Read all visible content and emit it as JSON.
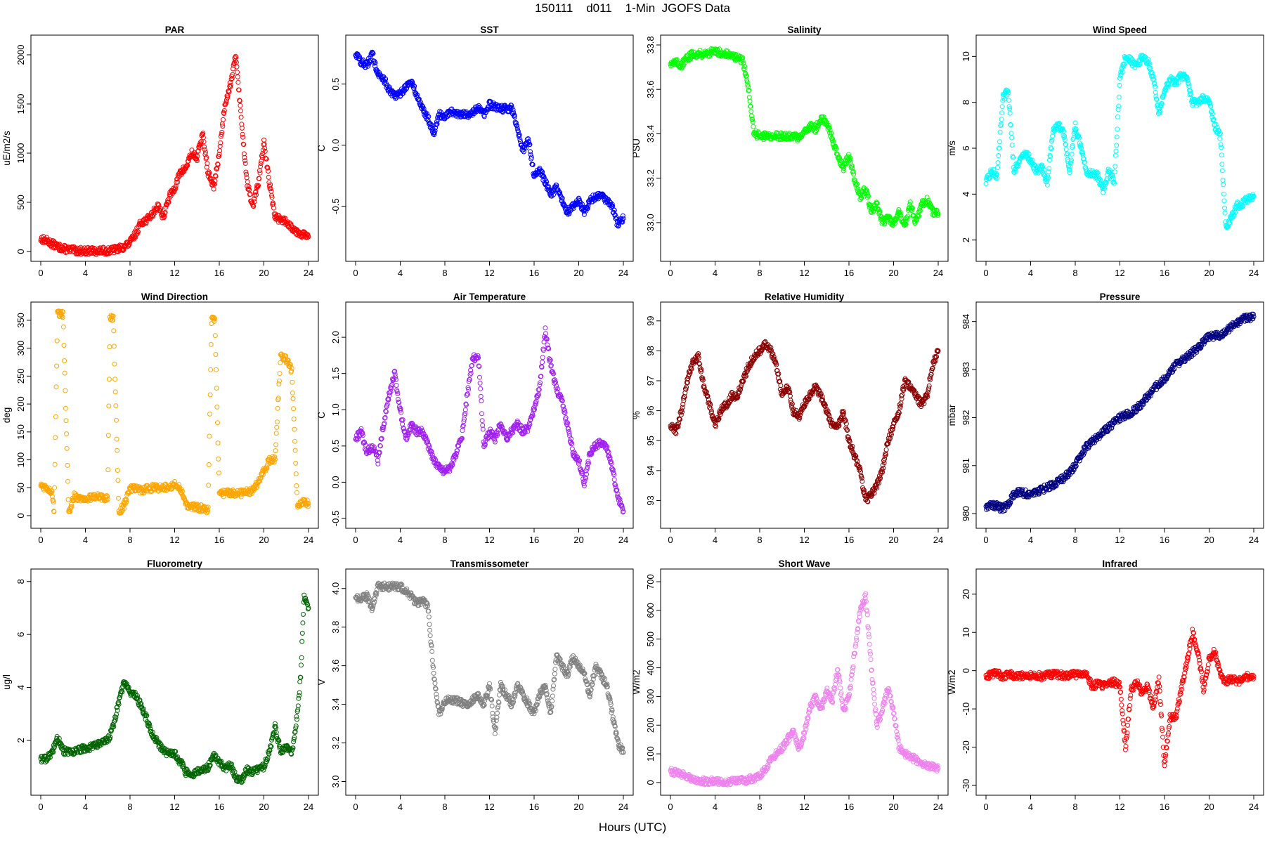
{
  "figure": {
    "title": "150111    d011    1-Min  JGOFS Data",
    "xlabel": "Hours (UTC)"
  },
  "chart_data": [
    {
      "type": "scatter",
      "title": "PAR",
      "ylabel": "uE/m2/s",
      "color": "#ff0000",
      "xlim": [
        0,
        24
      ],
      "ylim": [
        0,
        2100
      ],
      "xticks": [
        0,
        4,
        8,
        12,
        16,
        20,
        24
      ],
      "yticks": [
        0,
        500,
        1000,
        1500,
        2000
      ],
      "x": [
        0,
        0.5,
        1,
        1.5,
        2,
        3,
        4,
        5,
        6,
        6.5,
        7,
        7.5,
        8,
        8.5,
        9,
        9.5,
        10,
        10.5,
        11,
        11.5,
        12,
        12.5,
        13,
        13.5,
        14,
        14.5,
        15,
        15.5,
        16,
        16.5,
        17,
        17.5,
        18,
        18.5,
        19,
        19.5,
        20,
        20.5,
        21,
        22,
        23,
        24
      ],
      "y": [
        130,
        110,
        80,
        50,
        30,
        10,
        5,
        5,
        8,
        15,
        30,
        50,
        90,
        180,
        300,
        320,
        380,
        470,
        350,
        550,
        650,
        800,
        850,
        1000,
        950,
        1200,
        800,
        650,
        1000,
        1500,
        1700,
        2000,
        1300,
        700,
        450,
        700,
        1100,
        700,
        350,
        300,
        200,
        150
      ]
    },
    {
      "type": "scatter",
      "title": "SST",
      "ylabel": "C",
      "color": "#0000ff",
      "xlim": [
        0,
        24
      ],
      "ylim": [
        -0.87,
        0.82
      ],
      "xticks": [
        0,
        4,
        8,
        12,
        16,
        20,
        24
      ],
      "yticks": [
        -0.5,
        0.0,
        0.5
      ],
      "ytick_labels": [
        "-0.5",
        "0.0",
        "0.5"
      ],
      "x": [
        0,
        0.5,
        1,
        1.5,
        2,
        2.5,
        3,
        3.5,
        4,
        4.5,
        5,
        5.5,
        6,
        6.5,
        7,
        7.5,
        8,
        8.5,
        9,
        10,
        11,
        11.5,
        12,
        13,
        14,
        14.5,
        15,
        15.5,
        16,
        16.5,
        17,
        17.5,
        18,
        18.5,
        19,
        19.5,
        20,
        20.5,
        21,
        22,
        23,
        23.5,
        24
      ],
      "y": [
        0.75,
        0.68,
        0.65,
        0.75,
        0.58,
        0.55,
        0.45,
        0.4,
        0.42,
        0.48,
        0.52,
        0.4,
        0.3,
        0.22,
        0.1,
        0.25,
        0.24,
        0.28,
        0.25,
        0.25,
        0.3,
        0.25,
        0.33,
        0.3,
        0.3,
        0.15,
        -0.05,
        0.05,
        -0.25,
        -0.2,
        -0.3,
        -0.4,
        -0.35,
        -0.45,
        -0.55,
        -0.5,
        -0.45,
        -0.55,
        -0.45,
        -0.4,
        -0.5,
        -0.65,
        -0.6
      ]
    },
    {
      "type": "scatter",
      "title": "Salinity",
      "ylabel": "PSU",
      "color": "#00ff00",
      "xlim": [
        0,
        24
      ],
      "ylim": [
        32.87,
        33.8
      ],
      "xticks": [
        0,
        4,
        8,
        12,
        16,
        20,
        24
      ],
      "yticks": [
        33.0,
        33.2,
        33.4,
        33.6,
        33.8
      ],
      "ytick_labels": [
        "33.0",
        "33.2",
        "33.4",
        "33.6",
        "33.8"
      ],
      "x": [
        0,
        0.5,
        1,
        1.5,
        2,
        3,
        4,
        5,
        6,
        6.5,
        7,
        7.5,
        8,
        9,
        10,
        11,
        11.5,
        12,
        12.5,
        13,
        13.5,
        14,
        14.5,
        15,
        15.5,
        16,
        16.5,
        17,
        17.5,
        18,
        18.5,
        19,
        19.5,
        20,
        20.5,
        21,
        21.5,
        22,
        22.5,
        23,
        23.5,
        24
      ],
      "y": [
        33.72,
        33.72,
        33.71,
        33.74,
        33.76,
        33.76,
        33.77,
        33.76,
        33.74,
        33.73,
        33.6,
        33.4,
        33.39,
        33.39,
        33.39,
        33.39,
        33.38,
        33.4,
        33.44,
        33.42,
        33.47,
        33.45,
        33.38,
        33.3,
        33.25,
        33.3,
        33.2,
        33.12,
        33.15,
        33.05,
        33.08,
        33.0,
        33.02,
        33.0,
        33.05,
        32.98,
        33.08,
        33.0,
        33.08,
        33.1,
        33.05,
        33.04
      ]
    },
    {
      "type": "scatter",
      "title": "Wind Speed",
      "ylabel": "m/s",
      "color": "#00ffff",
      "xlim": [
        0,
        24
      ],
      "ylim": [
        1.5,
        10.5
      ],
      "xticks": [
        0,
        4,
        8,
        12,
        16,
        20,
        24
      ],
      "yticks": [
        2,
        4,
        6,
        8,
        10
      ],
      "x": [
        0,
        0.5,
        1,
        1.5,
        2,
        2.5,
        3,
        3.5,
        4,
        4.5,
        5,
        5.5,
        6,
        6.5,
        7,
        7.5,
        8,
        9,
        10,
        10.5,
        11,
        11.5,
        12,
        12.5,
        13,
        13.5,
        14,
        14.5,
        15,
        15.5,
        16,
        16.5,
        17,
        17.5,
        18,
        18.5,
        19,
        19.5,
        20,
        20.5,
        21,
        21.5,
        22,
        22.5,
        23,
        23.5,
        24
      ],
      "y": [
        4.5,
        5.0,
        4.8,
        8.2,
        8.5,
        5.0,
        5.5,
        5.8,
        5.5,
        5.0,
        5.2,
        4.5,
        6.8,
        7.0,
        6.6,
        5.0,
        7.0,
        5.0,
        4.8,
        4.2,
        5.0,
        4.5,
        9.0,
        10.0,
        9.8,
        9.5,
        10.0,
        9.8,
        9.0,
        7.5,
        8.5,
        9.0,
        8.8,
        9.2,
        9.0,
        8.0,
        8.0,
        8.2,
        8.0,
        7.0,
        6.5,
        2.5,
        3.0,
        3.5,
        3.6,
        3.8,
        3.9
      ]
    },
    {
      "type": "scatter",
      "title": "Wind Direction",
      "ylabel": "deg",
      "color": "#ffa500",
      "xlim": [
        0,
        24
      ],
      "ylim": [
        -5,
        365
      ],
      "xticks": [
        0,
        4,
        8,
        12,
        16,
        20,
        24
      ],
      "yticks": [
        0,
        50,
        100,
        150,
        200,
        250,
        300,
        350
      ],
      "x": [
        0,
        0.5,
        1,
        1.2,
        1.5,
        2,
        2.5,
        3,
        4,
        5,
        6,
        6.2,
        6.5,
        7,
        7.5,
        8,
        9,
        10,
        11,
        12,
        12.5,
        13,
        14,
        15,
        15.3,
        15.6,
        16,
        17,
        18,
        19,
        19.5,
        20,
        20.5,
        21,
        21.5,
        22,
        22.5,
        23,
        23.5,
        24
      ],
      "y": [
        55,
        50,
        45,
        5,
        360,
        360,
        5,
        35,
        30,
        35,
        30,
        355,
        352,
        5,
        20,
        50,
        45,
        50,
        50,
        55,
        50,
        20,
        15,
        10,
        350,
        352,
        40,
        40,
        40,
        45,
        60,
        80,
        100,
        100,
        290,
        280,
        260,
        20,
        25,
        22
      ]
    },
    {
      "type": "scatter",
      "title": "Air Temperature",
      "ylabel": "C",
      "color": "#a020f0",
      "xlim": [
        0,
        24
      ],
      "ylim": [
        -0.5,
        2.35
      ],
      "xticks": [
        0,
        4,
        8,
        12,
        16,
        20,
        24
      ],
      "yticks": [
        -0.5,
        0.0,
        0.5,
        1.0,
        1.5,
        2.0
      ],
      "ytick_labels": [
        "-0.5",
        "0.0",
        "0.5",
        "1.0",
        "1.5",
        "2.0"
      ],
      "x": [
        0,
        0.5,
        1,
        1.5,
        2,
        2.5,
        3,
        3.5,
        4,
        4.5,
        5,
        5.5,
        6,
        6.5,
        7,
        7.5,
        8,
        8.5,
        9,
        9.5,
        10,
        10.5,
        11,
        11.5,
        12,
        12.5,
        13,
        13.5,
        14,
        14.5,
        15,
        15.5,
        16,
        16.5,
        17,
        17.5,
        18,
        18.5,
        19,
        19.5,
        20,
        20.5,
        21,
        21.5,
        22,
        22.5,
        23,
        23.5,
        24
      ],
      "y": [
        0.6,
        0.7,
        0.4,
        0.5,
        0.3,
        0.8,
        1.2,
        1.5,
        1.0,
        0.6,
        0.8,
        0.7,
        0.7,
        0.5,
        0.3,
        0.2,
        0.15,
        0.2,
        0.4,
        0.6,
        1.2,
        1.7,
        1.75,
        0.5,
        0.7,
        0.6,
        0.8,
        0.6,
        0.7,
        0.8,
        0.7,
        0.75,
        1.0,
        1.3,
        2.1,
        1.6,
        1.3,
        1.1,
        0.8,
        0.4,
        0.3,
        0.0,
        0.4,
        0.5,
        0.55,
        0.5,
        0.2,
        -0.2,
        -0.4
      ]
    },
    {
      "type": "scatter",
      "title": "Relative Humidity",
      "ylabel": "%",
      "color": "#8b0000",
      "xlim": [
        0,
        24
      ],
      "ylim": [
        92.4,
        99.3
      ],
      "xticks": [
        0,
        4,
        8,
        12,
        16,
        20,
        24
      ],
      "yticks": [
        93,
        94,
        95,
        96,
        97,
        98,
        99
      ],
      "x": [
        0,
        0.5,
        1,
        1.5,
        2,
        2.5,
        3,
        3.5,
        4,
        4.5,
        5,
        5.5,
        6,
        6.5,
        7,
        7.5,
        8,
        8.5,
        9,
        9.5,
        10,
        10.5,
        11,
        11.5,
        12,
        12.5,
        13,
        13.5,
        14,
        14.5,
        15,
        15.5,
        16,
        16.5,
        17,
        17.5,
        18,
        18.5,
        19,
        19.5,
        20,
        20.5,
        21,
        21.5,
        22,
        22.5,
        23,
        23.5,
        24
      ],
      "y": [
        95.5,
        95.3,
        96.0,
        97.0,
        97.6,
        97.8,
        96.8,
        96.2,
        95.5,
        96.0,
        96.2,
        96.5,
        96.5,
        97.0,
        97.5,
        97.8,
        98.0,
        98.2,
        98.0,
        97.5,
        96.5,
        96.8,
        96.0,
        95.8,
        96.2,
        96.5,
        96.8,
        96.5,
        96.0,
        95.5,
        95.5,
        96.0,
        95.0,
        94.5,
        94.0,
        93.0,
        93.2,
        93.5,
        94.0,
        95.0,
        95.5,
        96.0,
        97.0,
        96.8,
        96.5,
        96.2,
        96.5,
        97.5,
        98.0
      ]
    },
    {
      "type": "scatter",
      "title": "Pressure",
      "ylabel": "mbar",
      "color": "#000080",
      "xlim": [
        0,
        24
      ],
      "ylim": [
        979.9,
        984.2
      ],
      "xticks": [
        0,
        4,
        8,
        12,
        16,
        20,
        24
      ],
      "yticks": [
        980,
        981,
        982,
        983,
        984
      ],
      "x": [
        0,
        0.5,
        1,
        1.5,
        2,
        2.5,
        3,
        4,
        5,
        6,
        7,
        8,
        9,
        10,
        11,
        12,
        13,
        14,
        15,
        16,
        17,
        18,
        19,
        20,
        21,
        22,
        23,
        24
      ],
      "y": [
        980.15,
        980.2,
        980.15,
        980.1,
        980.2,
        980.4,
        980.45,
        980.4,
        980.5,
        980.6,
        980.75,
        981.0,
        981.4,
        981.6,
        981.8,
        982.0,
        982.1,
        982.3,
        982.6,
        982.8,
        983.1,
        983.25,
        983.45,
        983.7,
        983.7,
        983.9,
        984.05,
        984.1
      ]
    },
    {
      "type": "scatter",
      "title": "Fluorometry",
      "ylabel": "ug/l",
      "color": "#006400",
      "xlim": [
        0,
        24
      ],
      "ylim": [
        0.3,
        8.1
      ],
      "xticks": [
        0,
        4,
        8,
        12,
        16,
        20,
        24
      ],
      "yticks": [
        2,
        4,
        6,
        8
      ],
      "x": [
        0,
        0.5,
        1,
        1.5,
        2,
        3,
        4,
        5,
        6,
        6.5,
        7,
        7.5,
        8,
        8.5,
        9,
        9.5,
        10,
        10.5,
        11,
        11.5,
        12,
        12.5,
        13,
        13.5,
        14,
        14.5,
        15,
        15.5,
        16,
        16.5,
        17,
        17.5,
        18,
        18.5,
        19,
        19.5,
        20,
        20.5,
        21,
        21.5,
        22,
        22.5,
        23,
        23.3,
        23.6,
        24
      ],
      "y": [
        1.3,
        1.3,
        1.5,
        2.1,
        1.6,
        1.6,
        1.7,
        1.8,
        2.0,
        2.5,
        3.5,
        4.2,
        3.8,
        3.7,
        3.3,
        2.8,
        2.2,
        1.9,
        1.6,
        1.5,
        1.5,
        1.2,
        0.8,
        0.7,
        0.8,
        0.9,
        1.0,
        1.4,
        1.2,
        0.9,
        1.1,
        0.6,
        0.5,
        0.9,
        0.8,
        0.9,
        1.0,
        1.6,
        2.5,
        1.6,
        1.8,
        1.5,
        3.0,
        4.5,
        7.5,
        7.0
      ]
    },
    {
      "type": "scatter",
      "title": "Transmissometer",
      "ylabel": "V",
      "color": "#808080",
      "xlim": [
        0,
        24
      ],
      "ylim": [
        2.98,
        4.05
      ],
      "xticks": [
        0,
        4,
        8,
        12,
        16,
        20,
        24
      ],
      "yticks": [
        3.0,
        3.2,
        3.4,
        3.6,
        3.8,
        4.0
      ],
      "ytick_labels": [
        "3.0",
        "3.2",
        "3.4",
        "3.6",
        "3.8",
        "4.0"
      ],
      "x": [
        0,
        0.5,
        1,
        1.5,
        2,
        3,
        4,
        5,
        5.5,
        6,
        6.5,
        7,
        7.5,
        8,
        9,
        10,
        11,
        11.5,
        12,
        12.5,
        13,
        13.5,
        14,
        14.5,
        15,
        15.5,
        16,
        16.5,
        17,
        17.5,
        18,
        18.5,
        19,
        19.5,
        20,
        20.5,
        21,
        21.5,
        22,
        22.5,
        23,
        23.5,
        24
      ],
      "y": [
        3.95,
        3.95,
        3.96,
        3.9,
        4.01,
        4.01,
        4.01,
        3.96,
        3.92,
        3.94,
        3.9,
        3.55,
        3.35,
        3.42,
        3.42,
        3.4,
        3.45,
        3.4,
        3.5,
        3.25,
        3.5,
        3.45,
        3.4,
        3.5,
        3.45,
        3.4,
        3.35,
        3.45,
        3.5,
        3.35,
        3.65,
        3.6,
        3.55,
        3.65,
        3.6,
        3.55,
        3.45,
        3.6,
        3.55,
        3.5,
        3.35,
        3.2,
        3.15
      ]
    },
    {
      "type": "scatter",
      "title": "Short Wave",
      "ylabel": "W/m2",
      "color": "#ee82ee",
      "xlim": [
        0,
        24
      ],
      "ylim": [
        -10,
        710
      ],
      "xticks": [
        0,
        4,
        8,
        12,
        16,
        20,
        24
      ],
      "yticks": [
        0,
        100,
        200,
        300,
        400,
        500,
        600,
        700
      ],
      "x": [
        0,
        0.5,
        1,
        1.5,
        2,
        3,
        4,
        5,
        6,
        7,
        7.5,
        8,
        8.5,
        9,
        9.5,
        10,
        10.5,
        11,
        11.5,
        12,
        12.5,
        13,
        13.5,
        14,
        14.5,
        15,
        15.5,
        16,
        16.5,
        17,
        17.5,
        18,
        18.5,
        19,
        19.5,
        20,
        20.5,
        21,
        22,
        23,
        24
      ],
      "y": [
        40,
        35,
        28,
        20,
        12,
        5,
        3,
        3,
        5,
        10,
        15,
        25,
        45,
        80,
        100,
        120,
        150,
        180,
        120,
        170,
        260,
        300,
        250,
        320,
        280,
        400,
        250,
        300,
        450,
        600,
        650,
        400,
        200,
        250,
        330,
        250,
        120,
        100,
        80,
        60,
        50
      ]
    },
    {
      "type": "scatter",
      "title": "Infrared",
      "ylabel": "W/m2",
      "color": "#ff0000",
      "xlim": [
        0,
        24
      ],
      "ylim": [
        -30,
        24
      ],
      "xticks": [
        0,
        4,
        8,
        12,
        16,
        20,
        24
      ],
      "yticks": [
        -30,
        -20,
        -10,
        0,
        10,
        20
      ],
      "x": [
        0,
        0.5,
        1,
        1.5,
        2,
        3,
        4,
        5,
        6,
        7,
        8,
        9,
        9.5,
        10,
        10.5,
        11,
        11.5,
        12,
        12.5,
        13,
        13.5,
        14,
        14.5,
        15,
        15.5,
        16,
        16.5,
        17,
        17.5,
        18,
        18.5,
        19,
        19.5,
        20,
        20.5,
        21,
        21.5,
        22,
        22.5,
        23,
        23.5,
        24
      ],
      "y": [
        -1.5,
        -1,
        -0.5,
        -2,
        -1,
        -1.5,
        -1.2,
        -1.5,
        -1.0,
        -1.2,
        -1.0,
        -0.8,
        -4,
        -3.5,
        -4,
        -3,
        -3,
        -4,
        -20,
        -5,
        -3,
        -6,
        -4,
        -10,
        -2,
        -25,
        -12,
        -12,
        -5,
        2,
        10,
        5,
        -5,
        3,
        5,
        -1,
        -3,
        -2,
        -3,
        -2,
        -1.5,
        -1.5
      ]
    }
  ]
}
